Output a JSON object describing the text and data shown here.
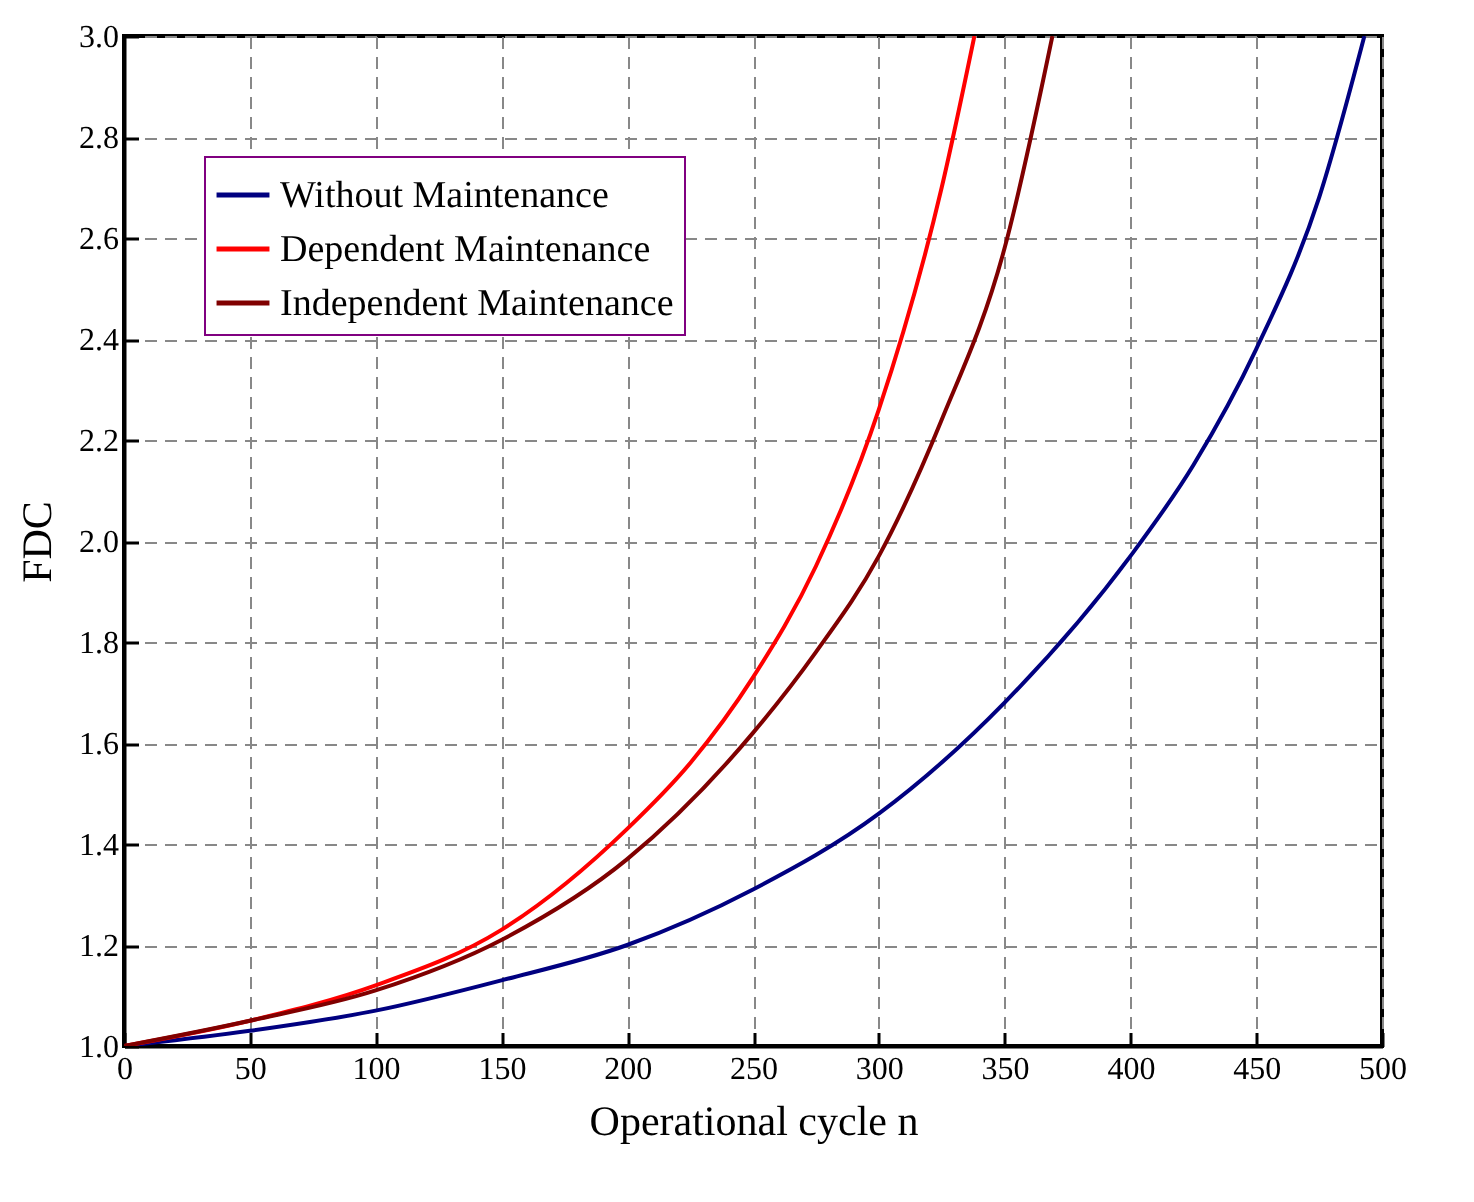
{
  "chart_data": {
    "type": "line",
    "xlabel": "Operational cycle n",
    "ylabel": "FDC",
    "xlim": [
      0,
      500
    ],
    "xticks": [
      0,
      50,
      100,
      150,
      200,
      250,
      300,
      350,
      400,
      450,
      500
    ],
    "ylim": [
      1,
      3
    ],
    "yticks": [
      {
        "value": 1,
        "label": "1.0"
      },
      {
        "value": 1.2,
        "label": "1.2"
      },
      {
        "value": 1.4,
        "label": "1.4"
      },
      {
        "value": 1.6,
        "label": "1.6"
      },
      {
        "value": 1.8,
        "label": "1.8"
      },
      {
        "value": 2,
        "label": "2.0"
      },
      {
        "value": 2.2,
        "label": "2.2"
      },
      {
        "value": 2.4,
        "label": "2.4"
      },
      {
        "value": 2.6,
        "label": "2.6"
      },
      {
        "value": 2.8,
        "label": "2.8"
      },
      {
        "value": 3,
        "label": "3.0"
      }
    ],
    "grid": true,
    "legend": "top left",
    "line_style": "solid",
    "marker": "none",
    "series": [
      {
        "name": "Without Maintenance",
        "color": "#000080",
        "x": [
          0,
          50,
          100,
          150,
          200,
          250,
          300,
          350,
          400,
          425,
          450,
          475,
          493
        ],
        "values": [
          1,
          1.03,
          1.07,
          1.13,
          1.2,
          1.31,
          1.46,
          1.68,
          1.97,
          2.15,
          2.38,
          2.68,
          3.0
        ]
      },
      {
        "name": "Dependent Maintenance",
        "color": "#ff0000",
        "x": [
          0,
          50,
          100,
          150,
          200,
          225,
          250,
          275,
          300,
          325,
          338
        ],
        "values": [
          1,
          1.05,
          1.12,
          1.23,
          1.43,
          1.56,
          1.73,
          1.95,
          2.26,
          2.7,
          3.0
        ]
      },
      {
        "name": "Independent Maintenance",
        "color": "#800000",
        "x": [
          0,
          50,
          100,
          150,
          200,
          250,
          275,
          300,
          325,
          350,
          369
        ],
        "values": [
          1,
          1.05,
          1.11,
          1.21,
          1.37,
          1.62,
          1.78,
          1.97,
          2.24,
          2.58,
          3.0
        ]
      }
    ]
  }
}
